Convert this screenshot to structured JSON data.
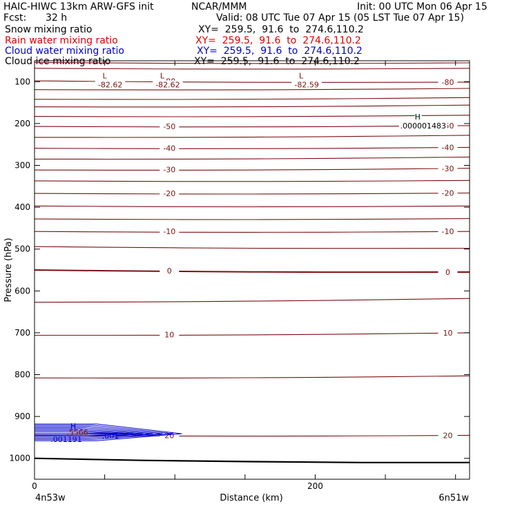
{
  "header": {
    "title": "HAIC-HIWC 13km ARW-GFS init",
    "org": "NCAR/MMM",
    "init": "Init: 00 UTC Mon 06 Apr 15",
    "fcst_label": "Fcst:",
    "fcst_value": "32 h",
    "valid": "Valid: 08 UTC Tue 07 Apr 15 (05 LST Tue 07 Apr 15)"
  },
  "legend": [
    {
      "name": "Snow mixing ratio",
      "xy": "XY=  259.5,  91.6  to  274.6,110.2",
      "color": "#000000"
    },
    {
      "name": "Rain water mixing ratio",
      "xy": "XY=  259.5,  91.6  to  274.6,110.2",
      "color": "#e00000"
    },
    {
      "name": "Cloud water mixing ratio",
      "xy": "XY=  259.5,  91.6  to  274.6,110.2",
      "color": "#0000cc"
    },
    {
      "name": "Cloud ice mixing ratio",
      "xy": "XY=  259.5,  91.6  to  274.6,110.2",
      "color": "#000000"
    }
  ],
  "chart_data": {
    "type": "line",
    "ylabel": "Pressure (hPa)",
    "xlabel": "Distance (km)",
    "x_start_label": "4n53w",
    "x_end_label": "6n51w",
    "x_ticks": [
      0,
      200
    ],
    "y_ticks": [
      100,
      200,
      300,
      400,
      500,
      600,
      700,
      800,
      900,
      1000
    ],
    "xlim": [
      0,
      310
    ],
    "ylim": [
      50,
      1050
    ],
    "temperature_color": "#7a1010",
    "ground_color": "#000000",
    "isotherms": [
      {
        "p": [
          54,
          55
        ],
        "label": ""
      },
      {
        "p": [
          68,
          68
        ],
        "label": ""
      },
      {
        "p": [
          98,
          101
        ],
        "label": "-80"
      },
      {
        "p": [
          119,
          116
        ],
        "label": ""
      },
      {
        "p": [
          142,
          138
        ],
        "label": ""
      },
      {
        "p": [
          160,
          156
        ],
        "label": ""
      },
      {
        "p": [
          183,
          180
        ],
        "label": ""
      },
      {
        "p": [
          207,
          205
        ],
        "label": "-50"
      },
      {
        "p": [
          233,
          228
        ],
        "label": ""
      },
      {
        "p": [
          259,
          257
        ],
        "label": "-40"
      },
      {
        "p": [
          285,
          280
        ],
        "label": ""
      },
      {
        "p": [
          311,
          307
        ],
        "label": "-30"
      },
      {
        "p": [
          337,
          336
        ],
        "label": ""
      },
      {
        "p": [
          367,
          366
        ],
        "label": "-20"
      },
      {
        "p": [
          397,
          397
        ],
        "label": ""
      },
      {
        "p": [
          428,
          427
        ],
        "label": ""
      },
      {
        "p": [
          458,
          458
        ],
        "label": "-10"
      },
      {
        "p": [
          494,
          498
        ],
        "label": ""
      },
      {
        "p": [
          550,
          555
        ],
        "label": "0"
      },
      {
        "p": [
          627,
          618
        ],
        "label": ""
      },
      {
        "p": [
          706,
          700
        ],
        "label": "10"
      },
      {
        "p": [
          808,
          803
        ],
        "label": ""
      },
      {
        "p": [
          945,
          945
        ],
        "label": "20"
      }
    ],
    "extrema": [
      {
        "type": "L",
        "value": "-82.62",
        "x": 50,
        "p": 102
      },
      {
        "type": "L",
        "value": "-82.62",
        "x": 91,
        "p": 102
      },
      {
        "type": "L",
        "value": "-82.59",
        "x": 190,
        "p": 102
      },
      {
        "type": "H",
        "value": ".000001483",
        "x": 273,
        "p": 200
      }
    ],
    "cloud_water": {
      "labels": [
        ".001",
        ".001191",
        "H",
        ".5566"
      ],
      "layer_p": [
        918,
        958
      ],
      "x_extent": [
        0,
        105
      ]
    },
    "surface_p": [
      1000,
      1005,
      1008,
      1010,
      1010
    ]
  }
}
